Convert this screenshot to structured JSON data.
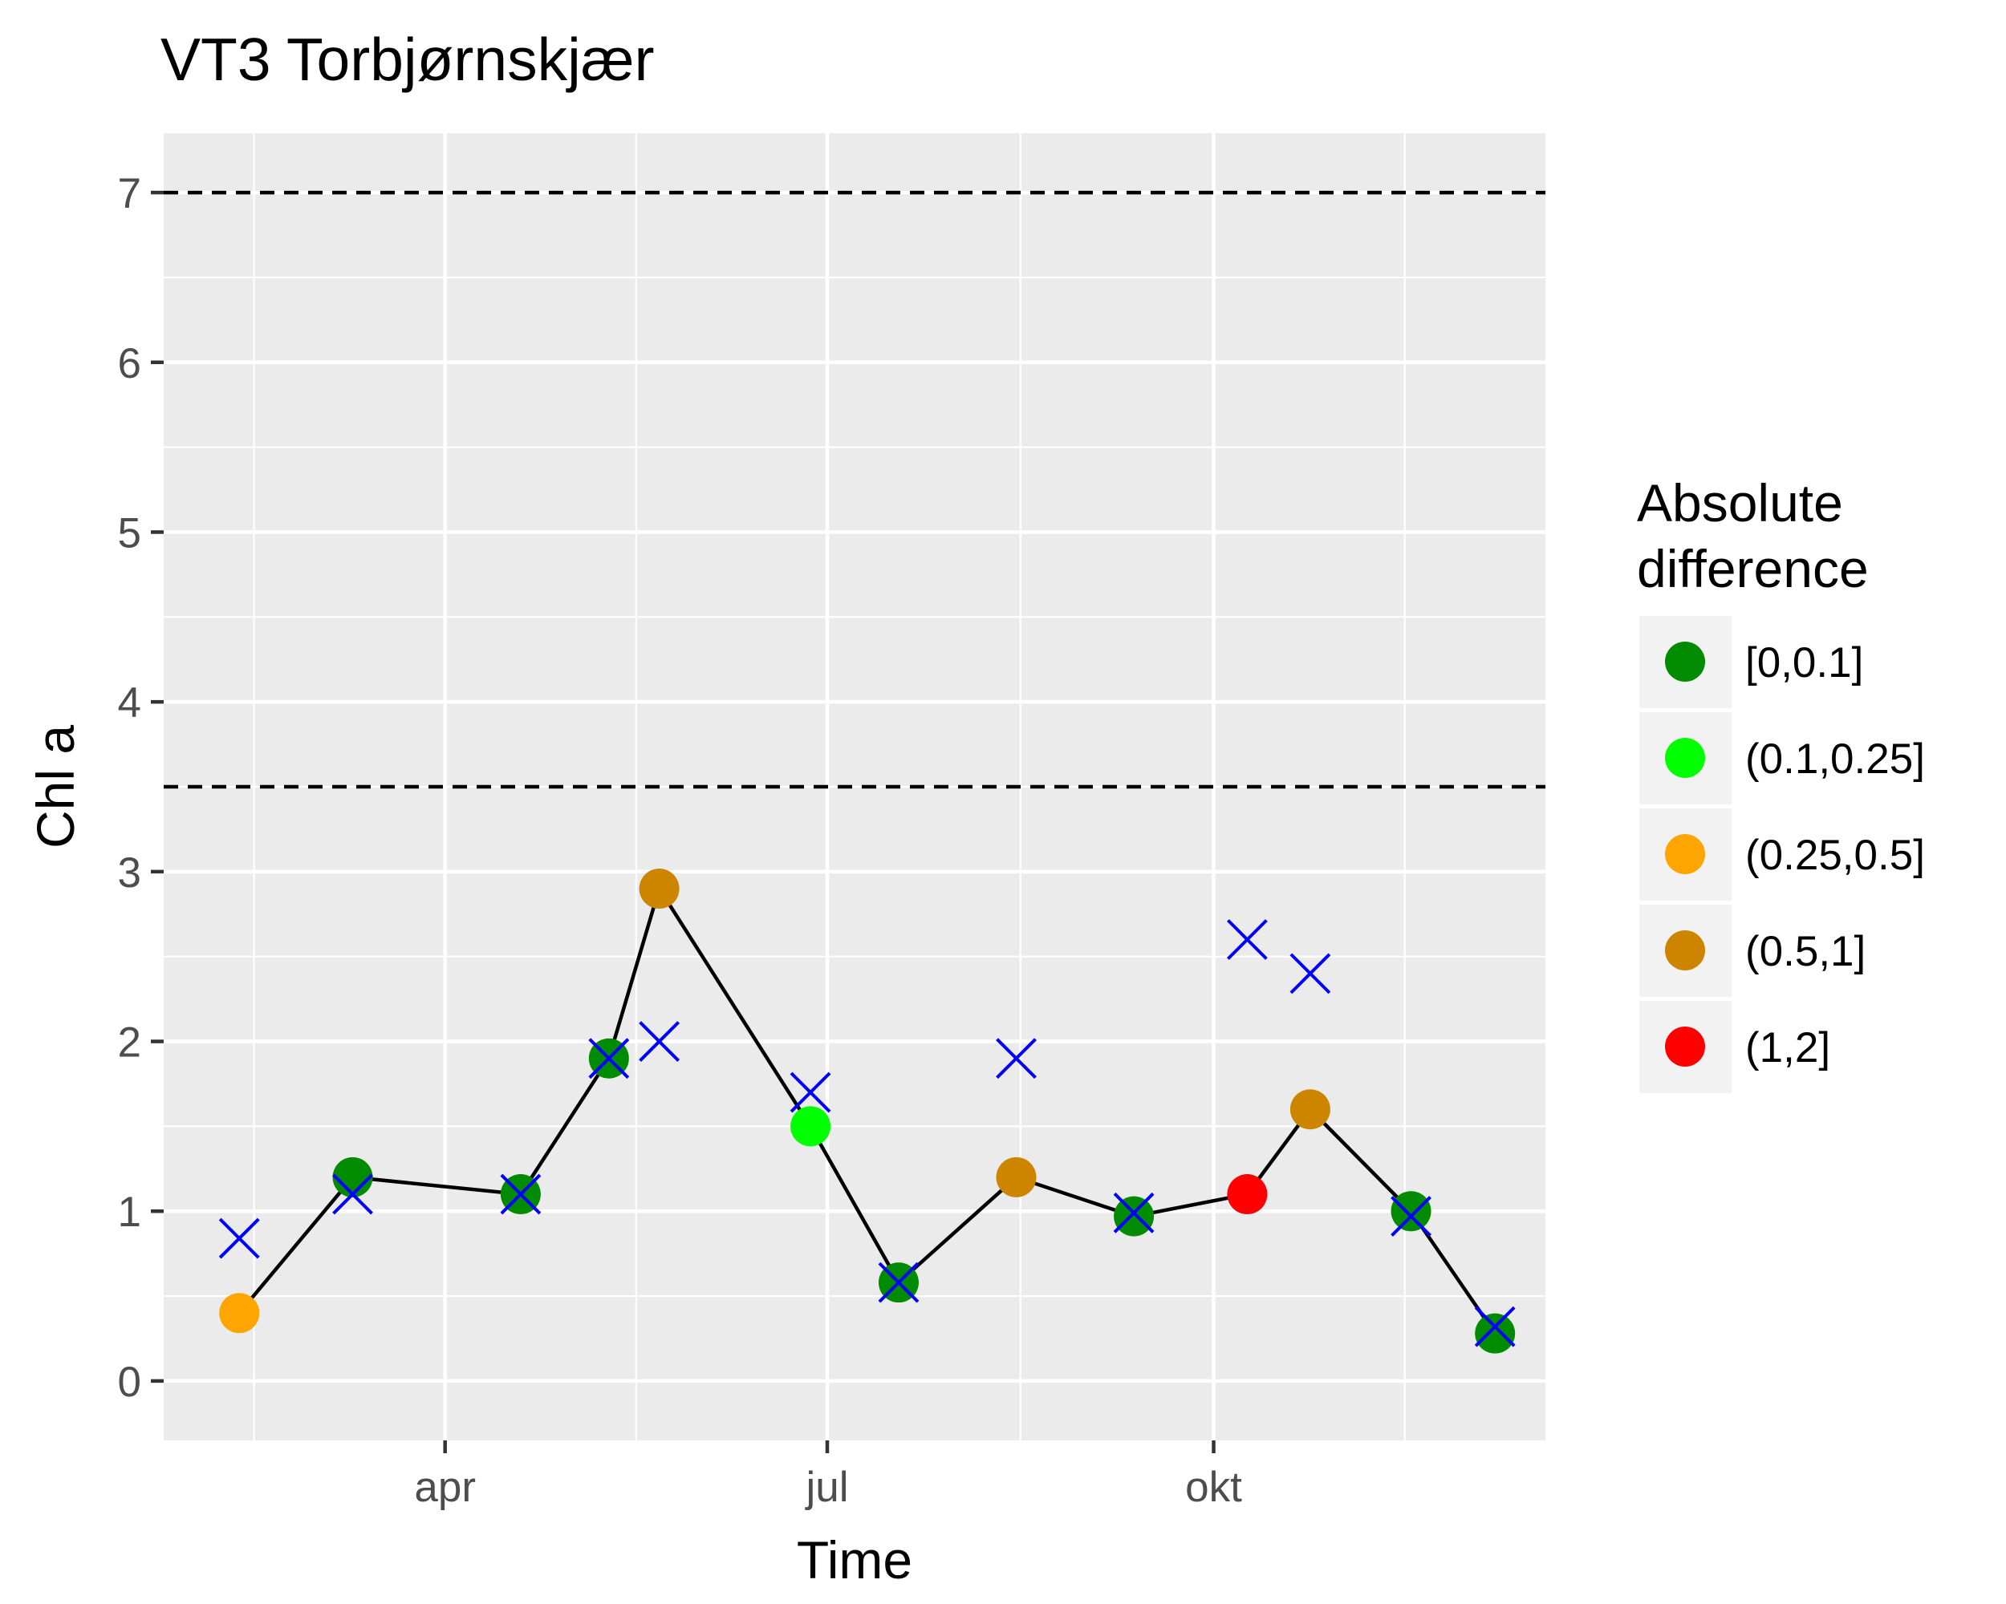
{
  "chart_data": {
    "type": "line",
    "title": "VT3 Torbjørnskjær",
    "xlabel": "Time",
    "ylabel": "Chl a",
    "ylim": [
      -0.35,
      7.35
    ],
    "xlim": [
      "2016-01-25",
      "2016-12-19"
    ],
    "x_ticks": [
      {
        "date": "2016-04-01",
        "label": "apr"
      },
      {
        "date": "2016-07-01",
        "label": "jul"
      },
      {
        "date": "2016-10-01",
        "label": "okt"
      }
    ],
    "y_ticks": [
      0,
      1,
      2,
      3,
      4,
      5,
      6,
      7
    ],
    "grid": true,
    "reference_lines": [
      3.5,
      7
    ],
    "legend": {
      "title": [
        "Absolute",
        "difference"
      ],
      "position": "right",
      "entries": [
        {
          "label": "[0,0.1]",
          "color": "#008b00"
        },
        {
          "label": "(0.1,0.25]",
          "color": "#00ff00"
        },
        {
          "label": "(0.25,0.5]",
          "color": "#ffa500"
        },
        {
          "label": "(0.5,1]",
          "color": "#cd8500"
        },
        {
          "label": "(1,2]",
          "color": "#ff0000"
        }
      ]
    },
    "series": [
      {
        "kind": "line+points",
        "color": "#000000",
        "points": [
          {
            "date": "2016-02-12",
            "y": 0.4,
            "class": 2
          },
          {
            "date": "2016-03-10",
            "y": 1.2,
            "class": 0
          },
          {
            "date": "2016-04-19",
            "y": 1.1,
            "class": 0
          },
          {
            "date": "2016-05-10",
            "y": 1.9,
            "class": 0
          },
          {
            "date": "2016-05-22",
            "y": 2.9,
            "class": 3
          },
          {
            "date": "2016-06-27",
            "y": 1.5,
            "class": 1
          },
          {
            "date": "2016-07-18",
            "y": 0.58,
            "class": 0
          },
          {
            "date": "2016-08-15",
            "y": 1.2,
            "class": 3
          },
          {
            "date": "2016-09-12",
            "y": 0.97,
            "class": 0
          },
          {
            "date": "2016-10-09",
            "y": 1.1,
            "class": 4
          },
          {
            "date": "2016-10-24",
            "y": 1.6,
            "class": 3
          },
          {
            "date": "2016-11-17",
            "y": 1.0,
            "class": 0
          },
          {
            "date": "2016-12-07",
            "y": 0.28,
            "class": 0
          }
        ]
      },
      {
        "kind": "cross-markers",
        "color": "#0000ff",
        "points": [
          {
            "date": "2016-02-12",
            "y": 0.84
          },
          {
            "date": "2016-03-10",
            "y": 1.1
          },
          {
            "date": "2016-04-19",
            "y": 1.1
          },
          {
            "date": "2016-05-10",
            "y": 1.9
          },
          {
            "date": "2016-05-22",
            "y": 2.0
          },
          {
            "date": "2016-06-27",
            "y": 1.7
          },
          {
            "date": "2016-07-18",
            "y": 0.58
          },
          {
            "date": "2016-08-15",
            "y": 1.9
          },
          {
            "date": "2016-09-12",
            "y": 0.99
          },
          {
            "date": "2016-10-09",
            "y": 2.6
          },
          {
            "date": "2016-10-24",
            "y": 2.4
          },
          {
            "date": "2016-11-17",
            "y": 0.97
          },
          {
            "date": "2016-12-07",
            "y": 0.32
          }
        ]
      }
    ]
  }
}
